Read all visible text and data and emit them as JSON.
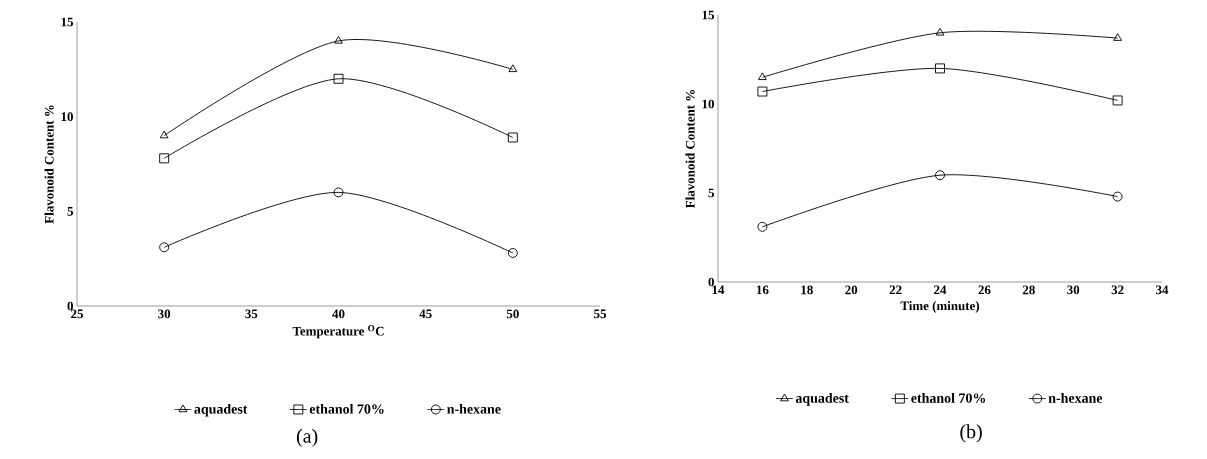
{
  "chart_data": [
    {
      "type": "line",
      "xlabel": "Temperature $^{O}$C",
      "ylabel": "Flavonoid Content %",
      "x": [
        30,
        40,
        50
      ],
      "series": [
        {
          "name": "aquadest",
          "color": "#000000",
          "marker": "triangle",
          "values": [
            9,
            14,
            12.5
          ]
        },
        {
          "name": "ethanol 70%",
          "color": "#000000",
          "marker": "square",
          "values": [
            7.8,
            12,
            8.9
          ]
        },
        {
          "name": "n-hexane",
          "color": "#000000",
          "marker": "circle",
          "values": [
            3.1,
            6,
            2.8
          ]
        }
      ],
      "xlim": [
        25,
        55
      ],
      "xticks": [
        25,
        30,
        35,
        40,
        45,
        50,
        55
      ],
      "ylim": [
        0,
        15
      ],
      "yticks": [
        0,
        5,
        10,
        15
      ],
      "grid": false,
      "legend": "bottom",
      "line_style": "solid",
      "annotations": [
        "(a)"
      ]
    },
    {
      "type": "line",
      "xlabel": "Time (minute)",
      "ylabel": "Flavonoid Content %",
      "x": [
        16,
        24,
        32
      ],
      "series": [
        {
          "name": "aquadest",
          "color": "#000000",
          "marker": "triangle",
          "values": [
            11.5,
            14,
            13.7
          ]
        },
        {
          "name": "ethanol 70%",
          "color": "#000000",
          "marker": "square",
          "values": [
            10.7,
            12,
            10.2
          ]
        },
        {
          "name": "n-hexane",
          "color": "#000000",
          "marker": "circle",
          "values": [
            3.1,
            6,
            4.8
          ]
        }
      ],
      "xlim": [
        14,
        34
      ],
      "xticks": [
        14,
        16,
        18,
        20,
        22,
        24,
        26,
        28,
        30,
        32,
        34
      ],
      "ylim": [
        0,
        15
      ],
      "yticks": [
        0,
        5,
        10,
        15
      ],
      "grid": false,
      "legend": "bottom",
      "line_style": "solid",
      "annotations": [
        "(b)"
      ]
    }
  ]
}
